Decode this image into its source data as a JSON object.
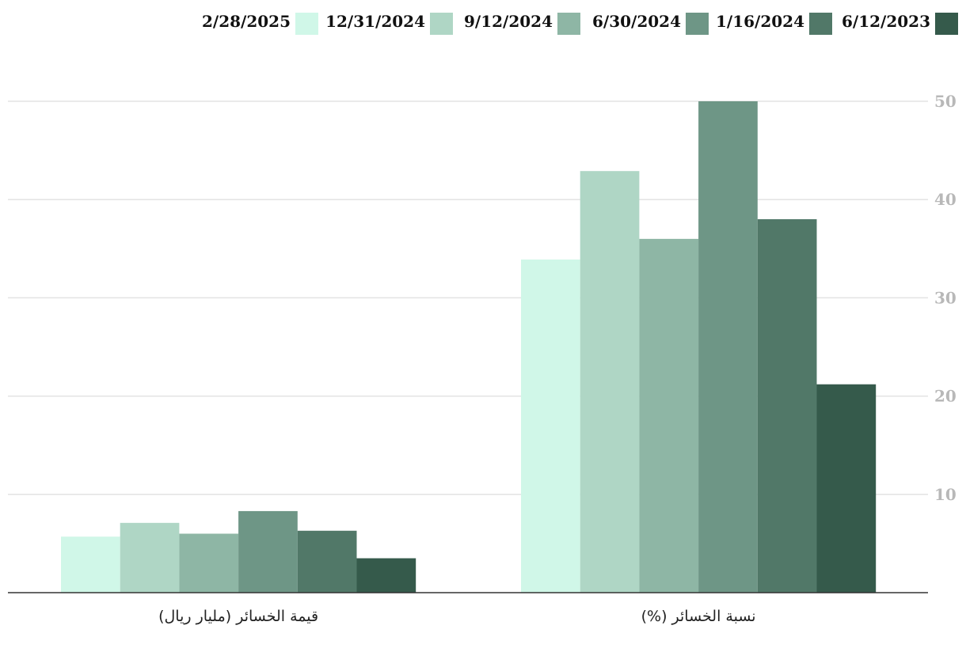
{
  "chart_data": {
    "type": "bar",
    "categories": [
      "قيمة الخسائر (مليار ريال)",
      "نسبة الخسائر (%)"
    ],
    "series": [
      {
        "name": "2/28/2025",
        "color": "#d0f7e8",
        "values": [
          5.7,
          33.9
        ]
      },
      {
        "name": "12/31/2024",
        "color": "#afd6c5",
        "values": [
          7.1,
          42.9
        ]
      },
      {
        "name": "9/12/2024",
        "color": "#8eb6a5",
        "values": [
          6.0,
          36.0
        ]
      },
      {
        "name": "6/30/2024",
        "color": "#6e9686",
        "values": [
          8.3,
          50.0
        ]
      },
      {
        "name": "1/16/2024",
        "color": "#517868",
        "values": [
          6.3,
          38.0
        ]
      },
      {
        "name": "6/12/2023",
        "color": "#355a4b",
        "values": [
          3.5,
          21.2
        ]
      }
    ],
    "yticks": [
      10,
      20,
      30,
      40,
      50
    ],
    "ylim": [
      0,
      50
    ],
    "grid": true,
    "legend_position": "top",
    "axis_side": "right"
  }
}
